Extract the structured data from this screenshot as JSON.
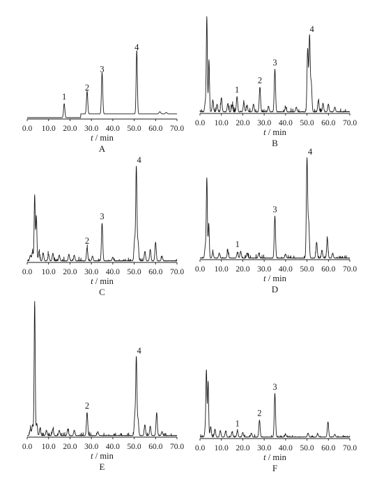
{
  "figure": {
    "axis_unit": "min",
    "axis_variable": "t"
  },
  "chart_data": [
    {
      "type": "line",
      "panel": "A",
      "xlabel": "t / min",
      "xlim": [
        0,
        70
      ],
      "xticks": [
        "0.0",
        "10.0",
        "20.0",
        "30.0",
        "40.0",
        "50.0",
        "60.0",
        "70.0"
      ],
      "baseline_step": [
        [
          0,
          0.0
        ],
        [
          24.5,
          0.0
        ],
        [
          25,
          0.05
        ],
        [
          70,
          0.05
        ]
      ],
      "peaks": [
        {
          "t": 17.3,
          "h": 0.19,
          "w": 0.3
        },
        {
          "t": 28.0,
          "h": 0.31,
          "w": 0.3
        },
        {
          "t": 35.0,
          "h": 0.56,
          "w": 0.3
        },
        {
          "t": 51.2,
          "h": 0.86,
          "w": 0.28
        },
        {
          "t": 62.0,
          "h": 0.03,
          "w": 0.4
        },
        {
          "t": 65.0,
          "h": 0.02,
          "w": 0.4
        }
      ],
      "peak_labels": [
        {
          "text": "1",
          "t": 17.3
        },
        {
          "text": "2",
          "t": 28.0
        },
        {
          "text": "3",
          "t": 35.0
        },
        {
          "text": "4",
          "t": 51.2
        }
      ]
    },
    {
      "type": "line",
      "panel": "B",
      "xlabel": "t / min",
      "xlim": [
        0,
        70
      ],
      "xticks": [
        "0.0",
        "10.0",
        "20.0",
        "30.0",
        "40.0",
        "50.0",
        "60.0",
        "70.0"
      ],
      "noise_level": 0.05,
      "peaks": [
        {
          "t": 2.5,
          "h": 0.1,
          "w": 0.3
        },
        {
          "t": 3.2,
          "h": 1.0,
          "w": 0.25
        },
        {
          "t": 4.2,
          "h": 0.55,
          "w": 0.25
        },
        {
          "t": 6.0,
          "h": 0.12,
          "w": 0.3
        },
        {
          "t": 8.0,
          "h": 0.08,
          "w": 0.3
        },
        {
          "t": 10.0,
          "h": 0.15,
          "w": 0.3
        },
        {
          "t": 13.0,
          "h": 0.09,
          "w": 0.3
        },
        {
          "t": 15.0,
          "h": 0.07,
          "w": 0.3
        },
        {
          "t": 17.3,
          "h": 0.16,
          "w": 0.3
        },
        {
          "t": 20.5,
          "h": 0.1,
          "w": 0.3
        },
        {
          "t": 22.0,
          "h": 0.07,
          "w": 0.3
        },
        {
          "t": 25.0,
          "h": 0.08,
          "w": 0.3
        },
        {
          "t": 28.0,
          "h": 0.26,
          "w": 0.3
        },
        {
          "t": 32.0,
          "h": 0.06,
          "w": 0.3
        },
        {
          "t": 35.0,
          "h": 0.45,
          "w": 0.3
        },
        {
          "t": 40.0,
          "h": 0.05,
          "w": 0.3
        },
        {
          "t": 45.0,
          "h": 0.05,
          "w": 0.3
        },
        {
          "t": 50.3,
          "h": 0.66,
          "w": 0.3
        },
        {
          "t": 51.2,
          "h": 0.8,
          "w": 0.3
        },
        {
          "t": 52.0,
          "h": 0.3,
          "w": 0.3
        },
        {
          "t": 55.3,
          "h": 0.12,
          "w": 0.3
        },
        {
          "t": 57.5,
          "h": 0.09,
          "w": 0.3
        },
        {
          "t": 60.0,
          "h": 0.08,
          "w": 0.3
        },
        {
          "t": 63.0,
          "h": 0.05,
          "w": 0.3
        }
      ],
      "peak_labels": [
        {
          "text": "1",
          "t": 17.3
        },
        {
          "text": "2",
          "t": 28.0
        },
        {
          "text": "3",
          "t": 35.0
        },
        {
          "text": "4",
          "t": 52.3
        }
      ]
    },
    {
      "type": "line",
      "panel": "C",
      "xlabel": "t / min",
      "xlim": [
        0,
        70
      ],
      "xticks": [
        "0.0",
        "10.0",
        "20.0",
        "30.0",
        "40.0",
        "50.0",
        "60.0",
        "70.0"
      ],
      "noise_level": 0.04,
      "peaks": [
        {
          "t": 1.5,
          "h": 0.06,
          "w": 0.3
        },
        {
          "t": 2.5,
          "h": 0.1,
          "w": 0.3
        },
        {
          "t": 3.5,
          "h": 0.7,
          "w": 0.25
        },
        {
          "t": 4.3,
          "h": 0.48,
          "w": 0.25
        },
        {
          "t": 5.5,
          "h": 0.1,
          "w": 0.3
        },
        {
          "t": 7.5,
          "h": 0.08,
          "w": 0.3
        },
        {
          "t": 10.0,
          "h": 0.07,
          "w": 0.3
        },
        {
          "t": 12.0,
          "h": 0.08,
          "w": 0.3
        },
        {
          "t": 15.0,
          "h": 0.06,
          "w": 0.3
        },
        {
          "t": 19.5,
          "h": 0.07,
          "w": 0.3
        },
        {
          "t": 22.0,
          "h": 0.06,
          "w": 0.3
        },
        {
          "t": 28.0,
          "h": 0.14,
          "w": 0.3
        },
        {
          "t": 30.5,
          "h": 0.05,
          "w": 0.3
        },
        {
          "t": 35.0,
          "h": 0.4,
          "w": 0.3
        },
        {
          "t": 40.0,
          "h": 0.04,
          "w": 0.3
        },
        {
          "t": 50.2,
          "h": 0.22,
          "w": 0.3
        },
        {
          "t": 51.0,
          "h": 1.0,
          "w": 0.28
        },
        {
          "t": 51.8,
          "h": 0.2,
          "w": 0.3
        },
        {
          "t": 55.0,
          "h": 0.1,
          "w": 0.3
        },
        {
          "t": 57.5,
          "h": 0.12,
          "w": 0.3
        },
        {
          "t": 60.0,
          "h": 0.2,
          "w": 0.3
        },
        {
          "t": 63.0,
          "h": 0.05,
          "w": 0.3
        }
      ],
      "peak_labels": [
        {
          "text": "2",
          "t": 28.0
        },
        {
          "text": "3",
          "t": 35.0
        },
        {
          "text": "4",
          "t": 52.3
        }
      ]
    },
    {
      "type": "line",
      "panel": "D",
      "xlabel": "t / min",
      "xlim": [
        0,
        70
      ],
      "xticks": [
        "0.0",
        "10.0",
        "20.0",
        "30.0",
        "40.0",
        "50.0",
        "60.0",
        "70.0"
      ],
      "noise_level": 0.035,
      "peaks": [
        {
          "t": 2.5,
          "h": 0.12,
          "w": 0.3
        },
        {
          "t": 3.2,
          "h": 0.8,
          "w": 0.25
        },
        {
          "t": 4.1,
          "h": 0.35,
          "w": 0.25
        },
        {
          "t": 6.0,
          "h": 0.06,
          "w": 0.3
        },
        {
          "t": 9.0,
          "h": 0.05,
          "w": 0.3
        },
        {
          "t": 13.0,
          "h": 0.07,
          "w": 0.3
        },
        {
          "t": 17.5,
          "h": 0.06,
          "w": 0.3
        },
        {
          "t": 19.0,
          "h": 0.07,
          "w": 0.3
        },
        {
          "t": 22.0,
          "h": 0.05,
          "w": 0.3
        },
        {
          "t": 27.5,
          "h": 0.05,
          "w": 0.3
        },
        {
          "t": 35.0,
          "h": 0.42,
          "w": 0.3
        },
        {
          "t": 40.0,
          "h": 0.04,
          "w": 0.3
        },
        {
          "t": 50.0,
          "h": 1.0,
          "w": 0.3
        },
        {
          "t": 50.8,
          "h": 0.35,
          "w": 0.3
        },
        {
          "t": 54.5,
          "h": 0.16,
          "w": 0.3
        },
        {
          "t": 57.0,
          "h": 0.08,
          "w": 0.3
        },
        {
          "t": 59.5,
          "h": 0.2,
          "w": 0.3
        },
        {
          "t": 62.0,
          "h": 0.05,
          "w": 0.3
        }
      ],
      "peak_labels": [
        {
          "text": "1",
          "t": 17.5
        },
        {
          "text": "3",
          "t": 35.0
        },
        {
          "text": "4",
          "t": 51.5
        }
      ]
    },
    {
      "type": "line",
      "panel": "E",
      "xlabel": "t / min",
      "xlim": [
        0,
        70
      ],
      "xticks": [
        "0.0",
        "10.0",
        "20.0",
        "30.0",
        "40.0",
        "50.0",
        "60.0",
        "70.0"
      ],
      "noise_level": 0.025,
      "peaks": [
        {
          "t": 1.5,
          "h": 0.05,
          "w": 0.3
        },
        {
          "t": 2.5,
          "h": 0.08,
          "w": 0.3
        },
        {
          "t": 3.5,
          "h": 1.0,
          "w": 0.25
        },
        {
          "t": 4.5,
          "h": 0.09,
          "w": 0.3
        },
        {
          "t": 6.0,
          "h": 0.05,
          "w": 0.3
        },
        {
          "t": 9.0,
          "h": 0.04,
          "w": 0.3
        },
        {
          "t": 12.0,
          "h": 0.05,
          "w": 0.3
        },
        {
          "t": 15.0,
          "h": 0.04,
          "w": 0.3
        },
        {
          "t": 19.0,
          "h": 0.05,
          "w": 0.3
        },
        {
          "t": 22.0,
          "h": 0.04,
          "w": 0.3
        },
        {
          "t": 28.0,
          "h": 0.17,
          "w": 0.3
        },
        {
          "t": 33.0,
          "h": 0.03,
          "w": 0.3
        },
        {
          "t": 50.3,
          "h": 0.14,
          "w": 0.3
        },
        {
          "t": 51.0,
          "h": 0.58,
          "w": 0.28
        },
        {
          "t": 51.8,
          "h": 0.12,
          "w": 0.3
        },
        {
          "t": 55.0,
          "h": 0.08,
          "w": 0.3
        },
        {
          "t": 57.5,
          "h": 0.07,
          "w": 0.3
        },
        {
          "t": 60.5,
          "h": 0.17,
          "w": 0.3
        },
        {
          "t": 63.0,
          "h": 0.03,
          "w": 0.3
        }
      ],
      "peak_labels": [
        {
          "text": "2",
          "t": 28.0
        },
        {
          "text": "4",
          "t": 52.3
        }
      ]
    },
    {
      "type": "line",
      "panel": "F",
      "xlabel": "t / min",
      "xlim": [
        0,
        70
      ],
      "xticks": [
        "0.0",
        "10.0",
        "20.0",
        "30.0",
        "40.0",
        "50.0",
        "60.0",
        "70.0"
      ],
      "noise_level": 0.035,
      "peaks": [
        {
          "t": 2.5,
          "h": 0.12,
          "w": 0.3
        },
        {
          "t": 3.0,
          "h": 1.0,
          "w": 0.25
        },
        {
          "t": 3.8,
          "h": 0.85,
          "w": 0.25
        },
        {
          "t": 5.0,
          "h": 0.16,
          "w": 0.3
        },
        {
          "t": 7.0,
          "h": 0.12,
          "w": 0.3
        },
        {
          "t": 9.5,
          "h": 0.1,
          "w": 0.3
        },
        {
          "t": 12.0,
          "h": 0.09,
          "w": 0.3
        },
        {
          "t": 15.0,
          "h": 0.08,
          "w": 0.3
        },
        {
          "t": 17.5,
          "h": 0.1,
          "w": 0.3
        },
        {
          "t": 20.0,
          "h": 0.07,
          "w": 0.3
        },
        {
          "t": 24.0,
          "h": 0.06,
          "w": 0.3
        },
        {
          "t": 27.8,
          "h": 0.26,
          "w": 0.3
        },
        {
          "t": 35.0,
          "h": 0.66,
          "w": 0.3
        },
        {
          "t": 40.0,
          "h": 0.04,
          "w": 0.3
        },
        {
          "t": 50.5,
          "h": 0.06,
          "w": 0.3
        },
        {
          "t": 55.0,
          "h": 0.05,
          "w": 0.3
        },
        {
          "t": 59.8,
          "h": 0.23,
          "w": 0.3
        },
        {
          "t": 63.0,
          "h": 0.04,
          "w": 0.3
        }
      ],
      "peak_labels": [
        {
          "text": "1",
          "t": 17.5
        },
        {
          "text": "2",
          "t": 27.8
        },
        {
          "text": "3",
          "t": 35.0
        }
      ]
    }
  ]
}
